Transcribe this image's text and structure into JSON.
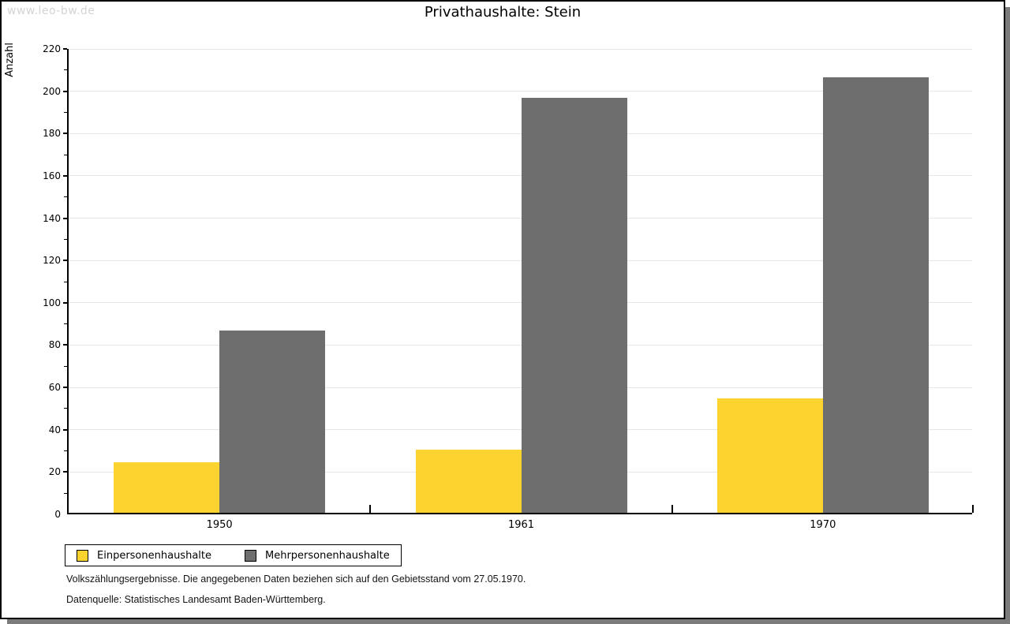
{
  "watermark": "www.leo-bw.de",
  "header": {
    "title": "Privathaushalte: Stein"
  },
  "footer": {
    "line1": "Volkszählungsergebnisse. Die angegebenen Daten beziehen sich auf den Gebietsstand vom 27.05.1970.",
    "line2": "Datenquelle: Statistisches Landesamt Baden-Württemberg."
  },
  "colors": {
    "series_einpersonen": "#fdd32f",
    "series_mehrpersonen": "#6e6e6e",
    "grid": "#e6e6e6",
    "axis": "#000000",
    "watermark": "#d4d4d4",
    "page_shadow": "#7b7b7b"
  },
  "chart_data": {
    "type": "bar",
    "title": "Privathaushalte: Stein",
    "xlabel": "",
    "ylabel": "Anzahl",
    "categories": [
      "1950",
      "1961",
      "1970"
    ],
    "series": [
      {
        "name": "Einpersonenhaushalte",
        "color": "#fdd32f",
        "values": [
          24,
          30,
          54
        ]
      },
      {
        "name": "Mehrpersonenhaushalte",
        "color": "#6e6e6e",
        "values": [
          86,
          196,
          206
        ]
      }
    ],
    "ylim": [
      0,
      220
    ],
    "ytick_step": 20,
    "yminor_step": 10,
    "grid": true,
    "legend_position": "bottom-left"
  }
}
